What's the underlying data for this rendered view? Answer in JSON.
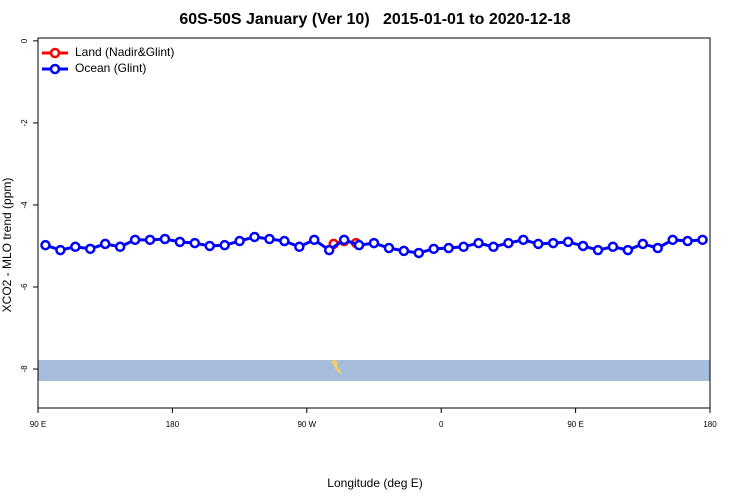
{
  "chart_data": {
    "type": "line",
    "title": "60S-50S January (Ver 10)   2015-01-01 to 2020-12-18",
    "x_label": "Longitude (deg E)",
    "y_label": "XCO2 - MLO trend (ppm)",
    "xlim": [
      90,
      540
    ],
    "ylim": [
      -8.95,
      0.07
    ],
    "xticks": [
      {
        "value": 90,
        "label": "90 E"
      },
      180,
      {
        "value": 270,
        "label": "90 W"
      },
      {
        "value": 360,
        "label": "0"
      },
      {
        "value": 450,
        "label": "90 E"
      },
      {
        "value": 540,
        "label": "180"
      }
    ],
    "yticks": [
      0,
      -2,
      -4,
      -6,
      -8
    ],
    "legend": "top-left",
    "series": [
      {
        "name": "Land (Nadir&Glint)",
        "color": "#ff0000",
        "x": [
          288,
          295,
          303
        ],
        "values": [
          -4.95,
          -4.88,
          -4.93
        ]
      },
      {
        "name": "Ocean (Glint)",
        "color": "#0000ff",
        "x": [
          95,
          105,
          115,
          125,
          135,
          145,
          155,
          165,
          175,
          185,
          195,
          205,
          215,
          225,
          235,
          245,
          255,
          265,
          275,
          285,
          295,
          305,
          315,
          325,
          335,
          345,
          355,
          365,
          375,
          385,
          395,
          405,
          415,
          425,
          435,
          445,
          455,
          465,
          475,
          485,
          495,
          505,
          515,
          525,
          535
        ],
        "values": [
          -4.98,
          -5.1,
          -5.02,
          -5.07,
          -4.95,
          -5.02,
          -4.85,
          -4.85,
          -4.83,
          -4.9,
          -4.93,
          -5.0,
          -4.98,
          -4.88,
          -4.78,
          -4.83,
          -4.88,
          -5.02,
          -4.85,
          -5.1,
          -4.85,
          -4.98,
          -4.93,
          -5.05,
          -5.12,
          -5.17,
          -5.07,
          -5.05,
          -5.02,
          -4.93,
          -5.02,
          -4.93,
          -4.85,
          -4.95,
          -4.93,
          -4.9,
          -5.0,
          -5.1,
          -5.02,
          -5.1,
          -4.95,
          -5.05,
          -4.85,
          -4.88,
          -4.85
        ]
      }
    ]
  }
}
